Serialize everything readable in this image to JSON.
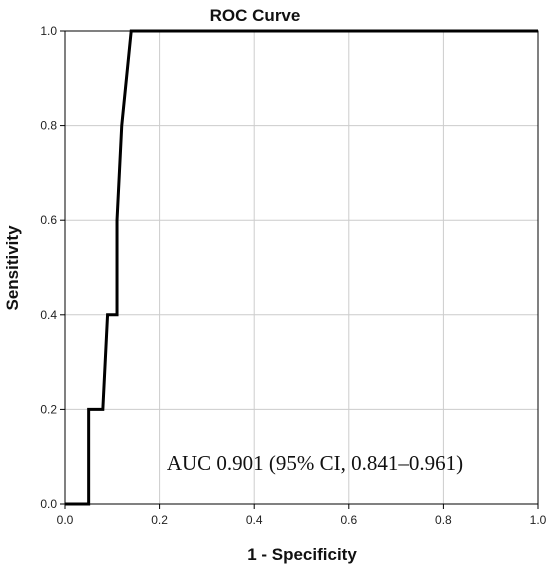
{
  "chart_data": {
    "type": "line",
    "title": "ROC Curve",
    "xlabel": "1 - Specificity",
    "ylabel": "Sensitivity",
    "xlim": [
      0.0,
      1.0
    ],
    "ylim": [
      0.0,
      1.0
    ],
    "x_ticks": [
      "0.0",
      "0.2",
      "0.4",
      "0.6",
      "0.8",
      "1.0"
    ],
    "y_ticks": [
      "0.0",
      "0.2",
      "0.4",
      "0.6",
      "0.8",
      "1.0"
    ],
    "grid": true,
    "annotation": "AUC 0.901 (95% CI, 0.841–0.961)",
    "series": [
      {
        "x": [
          0.0,
          0.05,
          0.05,
          0.08,
          0.09,
          0.11,
          0.11,
          0.12,
          0.14,
          1.0
        ],
        "y": [
          0.0,
          0.0,
          0.2,
          0.2,
          0.4,
          0.4,
          0.6,
          0.8,
          1.0,
          1.0
        ]
      }
    ],
    "colors": {
      "line": "#000000",
      "grid": "#cccccc",
      "frame": "#000000"
    }
  }
}
